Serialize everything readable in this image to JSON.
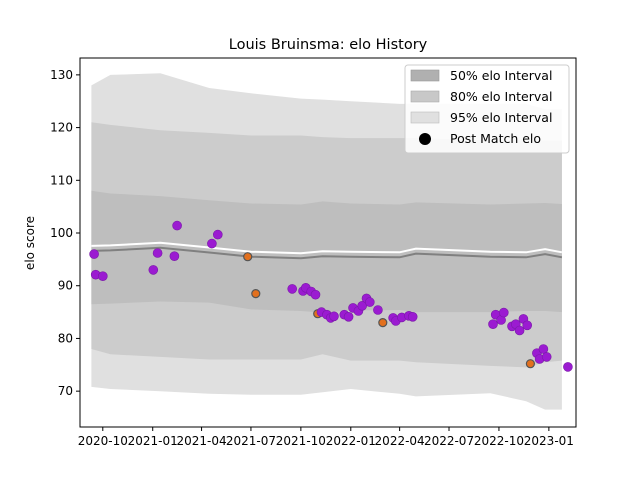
{
  "chart_data": {
    "type": "scatter",
    "title": "Louis Bruinsma: elo History",
    "xlabel": "",
    "ylabel": "elo score",
    "xlim": [
      "2020-08-20",
      "2023-02-20"
    ],
    "ylim": [
      63.2,
      133.2
    ],
    "x_tick_labels": [
      "2020-10",
      "2021-01",
      "2021-04",
      "2021-07",
      "2021-10",
      "2022-01",
      "2022-04",
      "2022-07",
      "2022-10",
      "2023-01"
    ],
    "x_tick_dates": [
      "2020-10-01",
      "2021-01-01",
      "2021-04-01",
      "2021-07-01",
      "2021-10-01",
      "2022-01-01",
      "2022-04-01",
      "2022-07-01",
      "2022-10-01",
      "2023-01-01"
    ],
    "y_ticks": [
      70,
      80,
      90,
      100,
      110,
      120,
      130
    ],
    "legend": {
      "position": "top-right",
      "entries": [
        {
          "label": "50% elo Interval",
          "kind": "band",
          "color": "#b0b0b0"
        },
        {
          "label": "80% elo Interval",
          "kind": "band",
          "color": "#c8c8c8"
        },
        {
          "label": "95% elo Interval",
          "kind": "band",
          "color": "#e0e0e0"
        },
        {
          "label": "Post Match elo",
          "kind": "marker",
          "color": "#000000"
        }
      ]
    },
    "colors": {
      "band95": "#e0e0e0",
      "band80": "#cccccc",
      "band50": "#bebebe",
      "mean_line": "#808080",
      "white_line": "#ffffff",
      "point": "#9b1bd1",
      "point_edge": "#7a1aa8",
      "highlight_point": "#e2701e",
      "highlight_edge": "#555555"
    },
    "bands": [
      {
        "date": "2020-09-10",
        "mean": 96.6,
        "upper50": 108,
        "lower50": 86.5,
        "upper80": 121,
        "lower80": 78,
        "upper95": 128,
        "lower95": 70.8
      },
      {
        "date": "2020-10-15",
        "mean": 96.7,
        "upper50": 107.5,
        "lower50": 86.6,
        "upper80": 120.5,
        "lower80": 77,
        "upper95": 130,
        "lower95": 70.4
      },
      {
        "date": "2021-01-15",
        "mean": 97.2,
        "upper50": 107,
        "lower50": 87,
        "upper80": 119.5,
        "lower80": 76.5,
        "upper95": 130.3,
        "lower95": 70
      },
      {
        "date": "2021-04-15",
        "mean": 96.3,
        "upper50": 106.2,
        "lower50": 86.8,
        "upper80": 119,
        "lower80": 76,
        "upper95": 127.5,
        "lower95": 69.5
      },
      {
        "date": "2021-07-01",
        "mean": 95.5,
        "upper50": 105.6,
        "lower50": 85.5,
        "upper80": 118.5,
        "lower80": 76,
        "upper95": 126.5,
        "lower95": 69.3
      },
      {
        "date": "2021-10-01",
        "mean": 95.2,
        "upper50": 105.4,
        "lower50": 85.2,
        "upper80": 118.5,
        "lower80": 76,
        "upper95": 125.5,
        "lower95": 69.3
      },
      {
        "date": "2021-11-10",
        "mean": 95.6,
        "upper50": 106,
        "lower50": 84.9,
        "upper80": 118.2,
        "lower80": 77,
        "upper95": 125.3,
        "lower95": 69.8
      },
      {
        "date": "2022-01-01",
        "mean": 95.5,
        "upper50": 105.6,
        "lower50": 85.3,
        "upper80": 118,
        "lower80": 75.8,
        "upper95": 125,
        "lower95": 70.4
      },
      {
        "date": "2022-04-01",
        "mean": 95.4,
        "upper50": 105.4,
        "lower50": 85.4,
        "upper80": 118,
        "lower80": 75.8,
        "upper95": 124.5,
        "lower95": 69.5
      },
      {
        "date": "2022-05-01",
        "mean": 96.1,
        "upper50": 105.8,
        "lower50": 85,
        "upper80": 118,
        "lower80": 75.5,
        "upper95": 124.5,
        "lower95": 69
      },
      {
        "date": "2022-09-15",
        "mean": 95.5,
        "upper50": 105.4,
        "lower50": 85,
        "upper80": 117.5,
        "lower80": 74.8,
        "upper95": 124.5,
        "lower95": 69.6
      },
      {
        "date": "2022-11-20",
        "mean": 95.4,
        "upper50": 105.6,
        "lower50": 85.2,
        "upper80": 117.6,
        "lower80": 74.5,
        "upper95": 124.5,
        "lower95": 68.1
      },
      {
        "date": "2022-12-25",
        "mean": 96,
        "upper50": 105.7,
        "lower50": 85.2,
        "upper80": 117.5,
        "lower80": 75.5,
        "upper95": 123.5,
        "lower95": 66.5
      },
      {
        "date": "2023-01-25",
        "mean": 95.4,
        "upper50": 105.5,
        "lower50": 85,
        "upper80": 117.5,
        "lower80": 75.8,
        "upper95": 123.5,
        "lower95": 66.5
      }
    ],
    "points": [
      {
        "date": "2020-09-15",
        "elo": 96
      },
      {
        "date": "2020-09-18",
        "elo": 92.1
      },
      {
        "date": "2020-10-01",
        "elo": 91.8
      },
      {
        "date": "2021-01-02",
        "elo": 93
      },
      {
        "date": "2021-01-10",
        "elo": 96.2
      },
      {
        "date": "2021-02-10",
        "elo": 95.6
      },
      {
        "date": "2021-02-15",
        "elo": 101.4
      },
      {
        "date": "2021-04-20",
        "elo": 98
      },
      {
        "date": "2021-05-01",
        "elo": 99.7
      },
      {
        "date": "2021-06-25",
        "elo": 95.5,
        "highlight": true
      },
      {
        "date": "2021-07-10",
        "elo": 88.5,
        "highlight": true
      },
      {
        "date": "2021-09-15",
        "elo": 89.4
      },
      {
        "date": "2021-10-05",
        "elo": 89
      },
      {
        "date": "2021-10-10",
        "elo": 89.6
      },
      {
        "date": "2021-10-20",
        "elo": 88.9
      },
      {
        "date": "2021-10-28",
        "elo": 88.3
      },
      {
        "date": "2021-11-01",
        "elo": 84.7,
        "highlight": true
      },
      {
        "date": "2021-11-08",
        "elo": 85
      },
      {
        "date": "2021-11-18",
        "elo": 84.5
      },
      {
        "date": "2021-11-25",
        "elo": 83.9
      },
      {
        "date": "2021-12-01",
        "elo": 84.2
      },
      {
        "date": "2021-12-20",
        "elo": 84.5
      },
      {
        "date": "2021-12-28",
        "elo": 84.1
      },
      {
        "date": "2022-01-05",
        "elo": 85.8
      },
      {
        "date": "2022-01-15",
        "elo": 85.2
      },
      {
        "date": "2022-01-22",
        "elo": 86.2
      },
      {
        "date": "2022-01-30",
        "elo": 87.6
      },
      {
        "date": "2022-02-05",
        "elo": 86.9
      },
      {
        "date": "2022-02-20",
        "elo": 85.4
      },
      {
        "date": "2022-03-01",
        "elo": 83,
        "highlight": true
      },
      {
        "date": "2022-03-20",
        "elo": 83.9
      },
      {
        "date": "2022-03-25",
        "elo": 83.3
      },
      {
        "date": "2022-04-05",
        "elo": 84
      },
      {
        "date": "2022-04-18",
        "elo": 84.3
      },
      {
        "date": "2022-04-25",
        "elo": 84.1
      },
      {
        "date": "2022-09-20",
        "elo": 82.7
      },
      {
        "date": "2022-09-25",
        "elo": 84.5
      },
      {
        "date": "2022-10-05",
        "elo": 83.5
      },
      {
        "date": "2022-10-10",
        "elo": 84.9
      },
      {
        "date": "2022-10-25",
        "elo": 82.3
      },
      {
        "date": "2022-11-01",
        "elo": 82.7
      },
      {
        "date": "2022-11-08",
        "elo": 81.5
      },
      {
        "date": "2022-11-15",
        "elo": 83.7
      },
      {
        "date": "2022-11-22",
        "elo": 82.5
      },
      {
        "date": "2022-11-28",
        "elo": 75.2,
        "highlight": true
      },
      {
        "date": "2022-12-10",
        "elo": 77.2
      },
      {
        "date": "2022-12-15",
        "elo": 76.1
      },
      {
        "date": "2022-12-22",
        "elo": 78
      },
      {
        "date": "2022-12-28",
        "elo": 76.5
      },
      {
        "date": "2023-02-05",
        "elo": 74.6
      }
    ]
  }
}
